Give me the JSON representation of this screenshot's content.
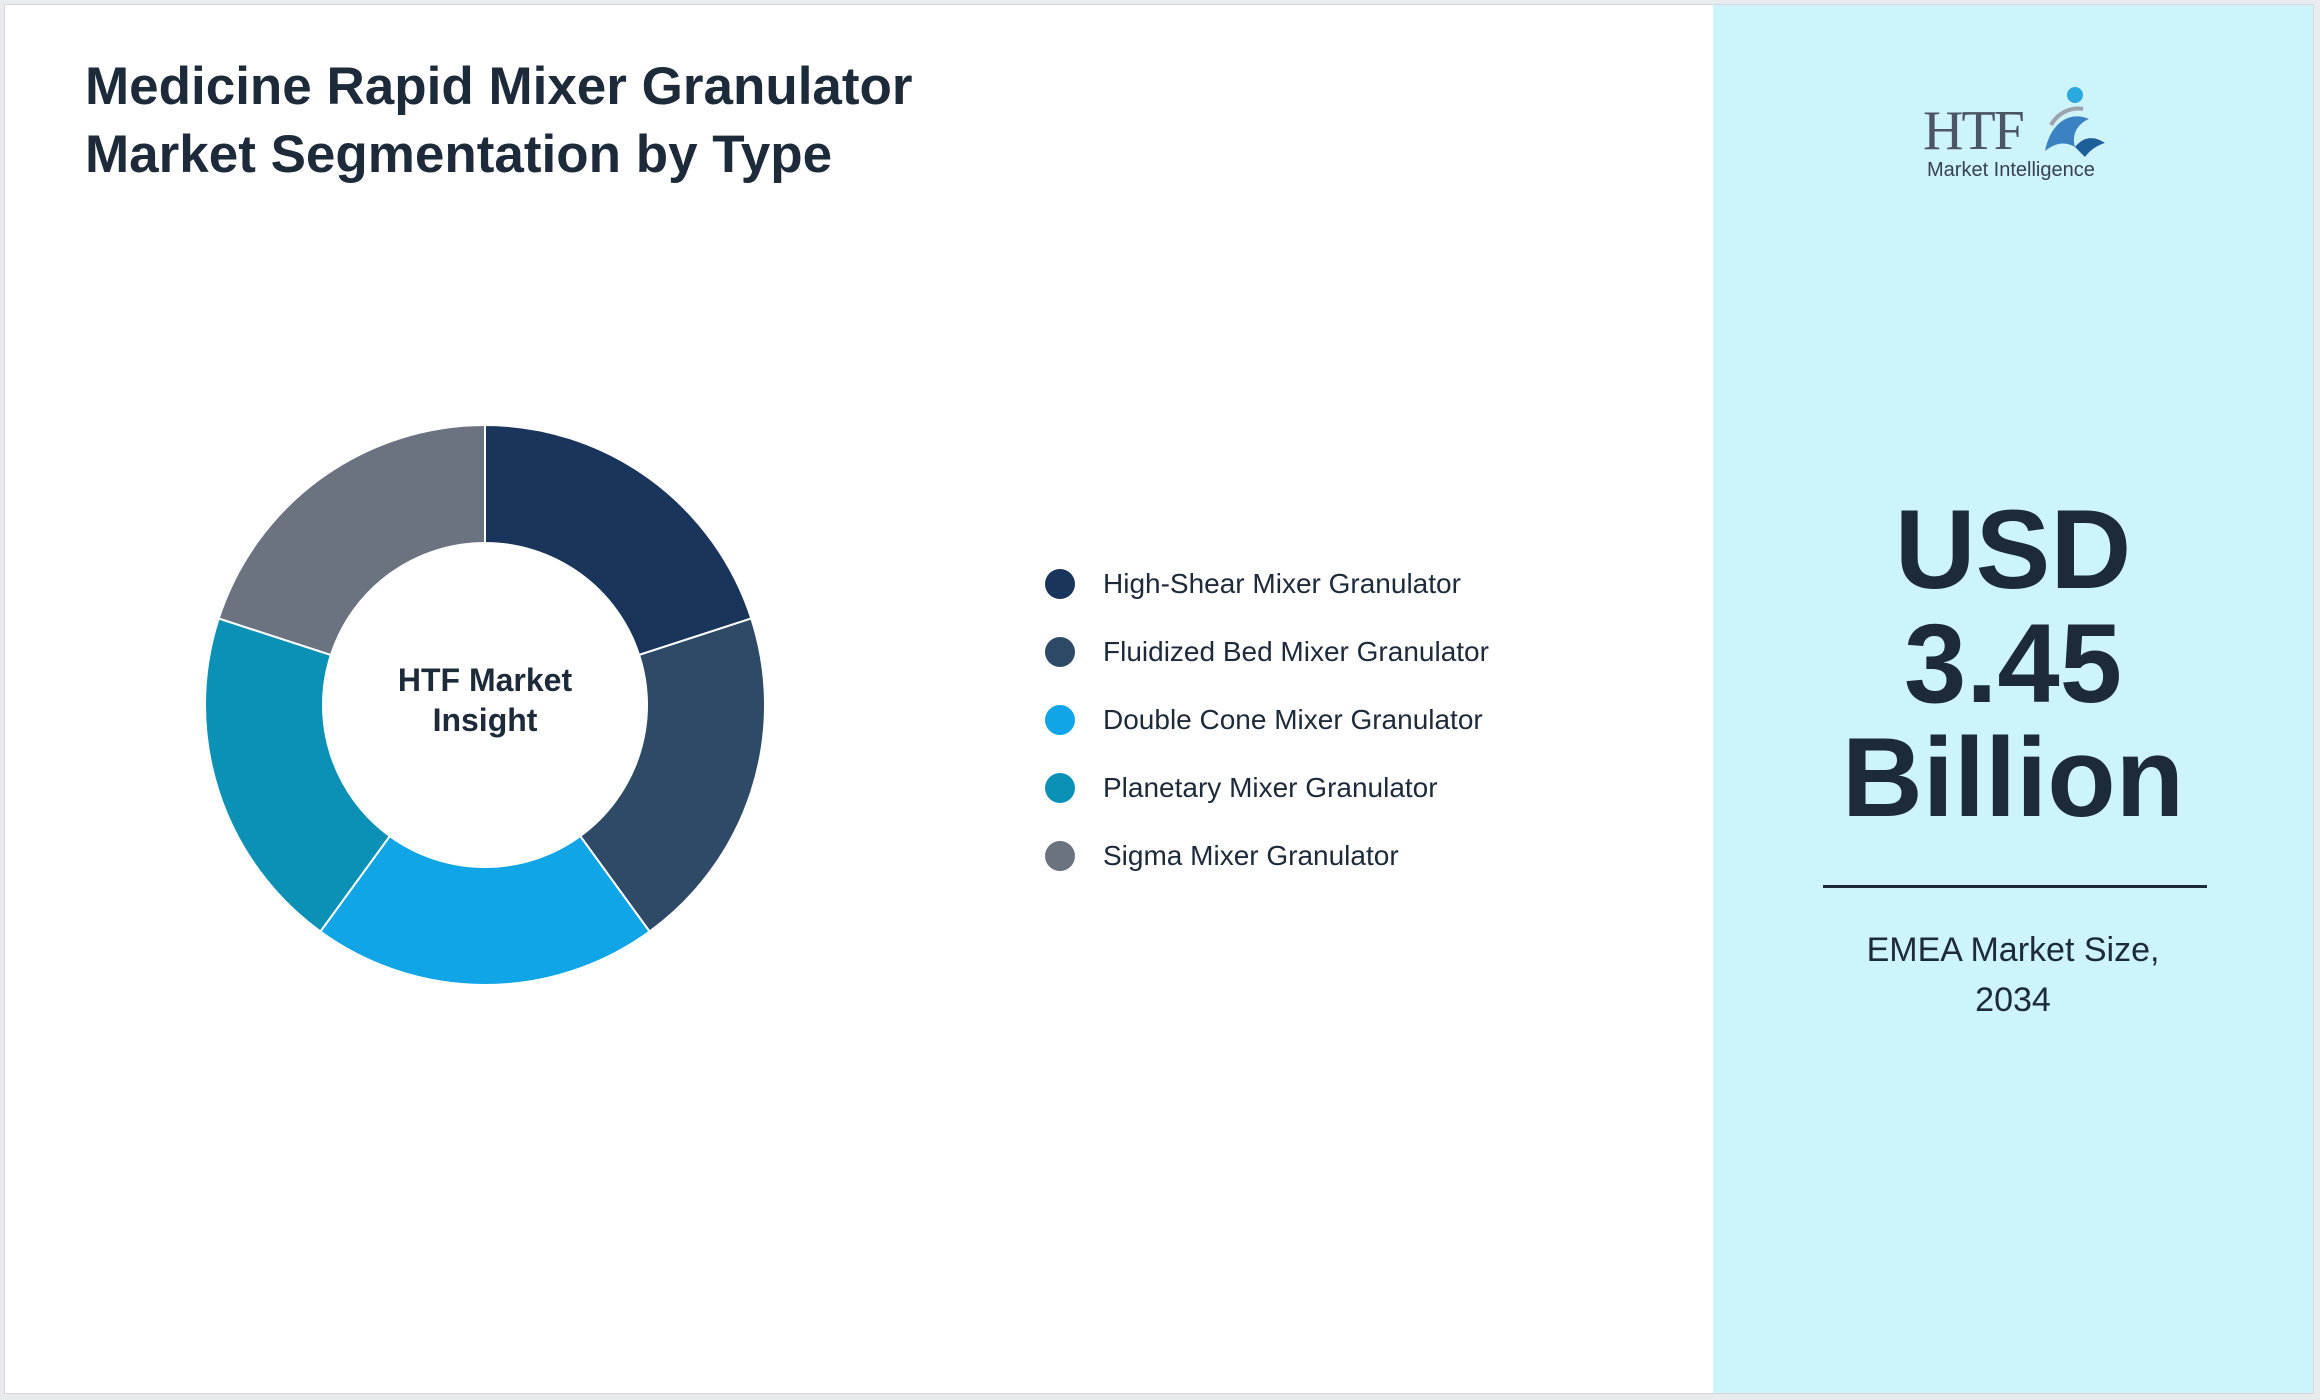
{
  "title": {
    "line1": "Medicine Rapid Mixer Granulator",
    "line2": "Market Segmentation by Type"
  },
  "chart_data": {
    "type": "pie",
    "title": "Medicine Rapid Mixer Granulator Market Segmentation by Type",
    "center_label": [
      "HTF Market",
      "Insight"
    ],
    "legend_position": "right",
    "categories": [
      "High-Shear Mixer Granulator",
      "Fluidized Bed Mixer Granulator",
      "Double Cone Mixer Granulator",
      "Planetary Mixer Granulator",
      "Sigma Mixer Granulator"
    ],
    "values": [
      20,
      20,
      20,
      20,
      20
    ],
    "colors": [
      "#1a355b",
      "#2e4a66",
      "#10a5e6",
      "#0b91b5",
      "#6b7280"
    ]
  },
  "side_panel": {
    "logo": {
      "name": "HTF",
      "subtitle": "Market Intelligence",
      "icon": "htf-swirl-logo-icon"
    },
    "value_lines": [
      "USD",
      "3.45",
      "Billion"
    ],
    "caption_lines": [
      "EMEA Market Size,",
      "2034"
    ],
    "background": "#cdf3fb"
  }
}
